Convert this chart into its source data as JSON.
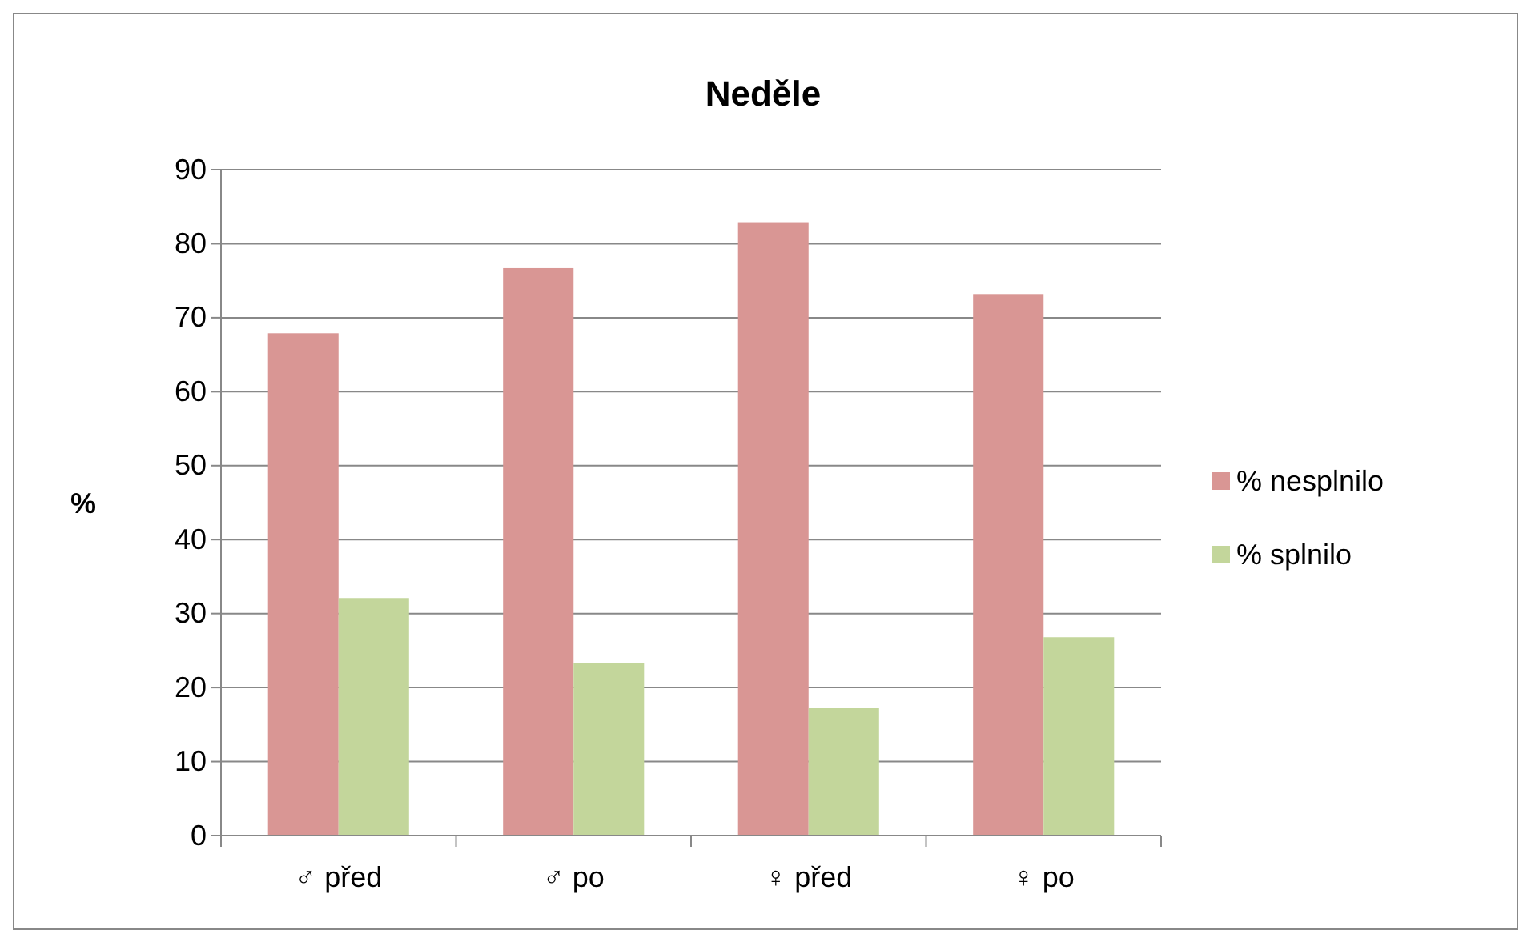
{
  "chart_data": {
    "type": "bar",
    "title": "Neděle",
    "ylabel": "%",
    "categories": [
      "♂ před",
      "♂ po",
      "♀ před",
      "♀ po"
    ],
    "series": [
      {
        "name": "% nesplnilo",
        "color": "#d99694",
        "values": [
          67.9,
          76.7,
          82.8,
          73.2
        ]
      },
      {
        "name": "% splnilo",
        "color": "#c3d69b",
        "values": [
          32.1,
          23.3,
          17.2,
          26.8
        ]
      }
    ],
    "ylim": [
      0,
      90
    ],
    "yticks": [
      0,
      10,
      20,
      30,
      40,
      50,
      60,
      70,
      80,
      90
    ],
    "grid": "y",
    "legend": "right"
  }
}
